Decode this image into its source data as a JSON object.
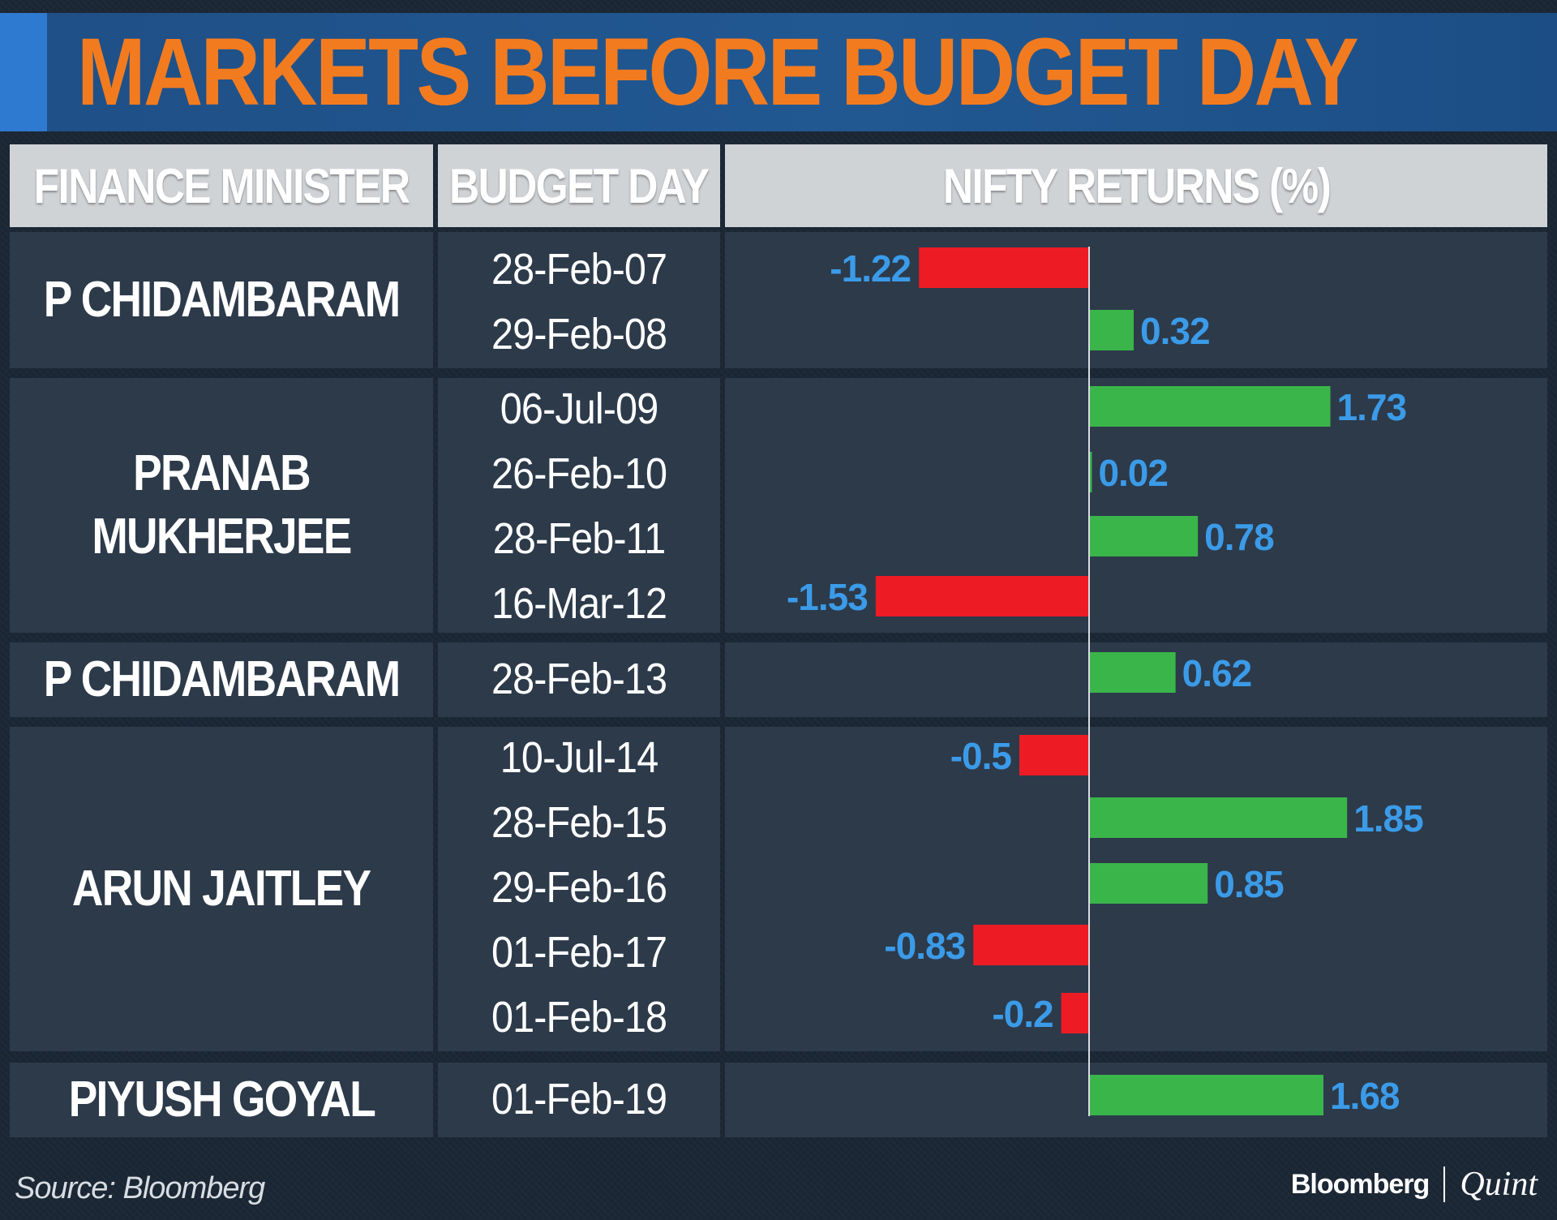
{
  "title": "MARKETS BEFORE BUDGET DAY",
  "headers": {
    "finance_minister": "FINANCE MINISTER",
    "budget_day": "BUDGET DAY",
    "nifty_returns": "NIFTY RETURNS (%)"
  },
  "groups": [
    {
      "minister": "P CHIDAMBARAM",
      "dates": [
        "28-Feb-07",
        "29-Feb-08"
      ]
    },
    {
      "minister": "PRANAB MUKHERJEE",
      "dates": [
        "06-Jul-09",
        "26-Feb-10",
        "28-Feb-11",
        "16-Mar-12"
      ]
    },
    {
      "minister": "P CHIDAMBARAM",
      "dates": [
        "28-Feb-13"
      ]
    },
    {
      "minister": "ARUN JAITLEY",
      "dates": [
        "10-Jul-14",
        "28-Feb-15",
        "29-Feb-16",
        "01-Feb-17",
        "01-Feb-18"
      ]
    },
    {
      "minister": "PIYUSH GOYAL",
      "dates": [
        "01-Feb-19"
      ]
    }
  ],
  "chart_data": {
    "type": "bar",
    "orientation": "horizontal",
    "title": "NIFTY RETURNS (%)",
    "categories": [
      "28-Feb-07",
      "29-Feb-08",
      "06-Jul-09",
      "26-Feb-10",
      "28-Feb-11",
      "16-Mar-12",
      "28-Feb-13",
      "10-Jul-14",
      "28-Feb-15",
      "29-Feb-16",
      "01-Feb-17",
      "01-Feb-18",
      "01-Feb-19"
    ],
    "values": [
      -1.22,
      0.32,
      1.73,
      0.02,
      0.78,
      -1.53,
      0.62,
      -0.5,
      1.85,
      0.85,
      -0.83,
      -0.2,
      1.68
    ],
    "labels": [
      "-1.22",
      "0.32",
      "1.73",
      "0.02",
      "0.78",
      "-1.53",
      "0.62",
      "-0.5",
      "1.85",
      "0.85",
      "-0.83",
      "-0.2",
      "1.68"
    ],
    "colors": {
      "positive": "#3ab54a",
      "negative": "#ed1c24",
      "label": "#3b9be8",
      "zero_line": "#d9dde2"
    }
  },
  "source": "Source: Bloomberg",
  "brand": {
    "left": "Bloomberg",
    "right": "Quint"
  }
}
